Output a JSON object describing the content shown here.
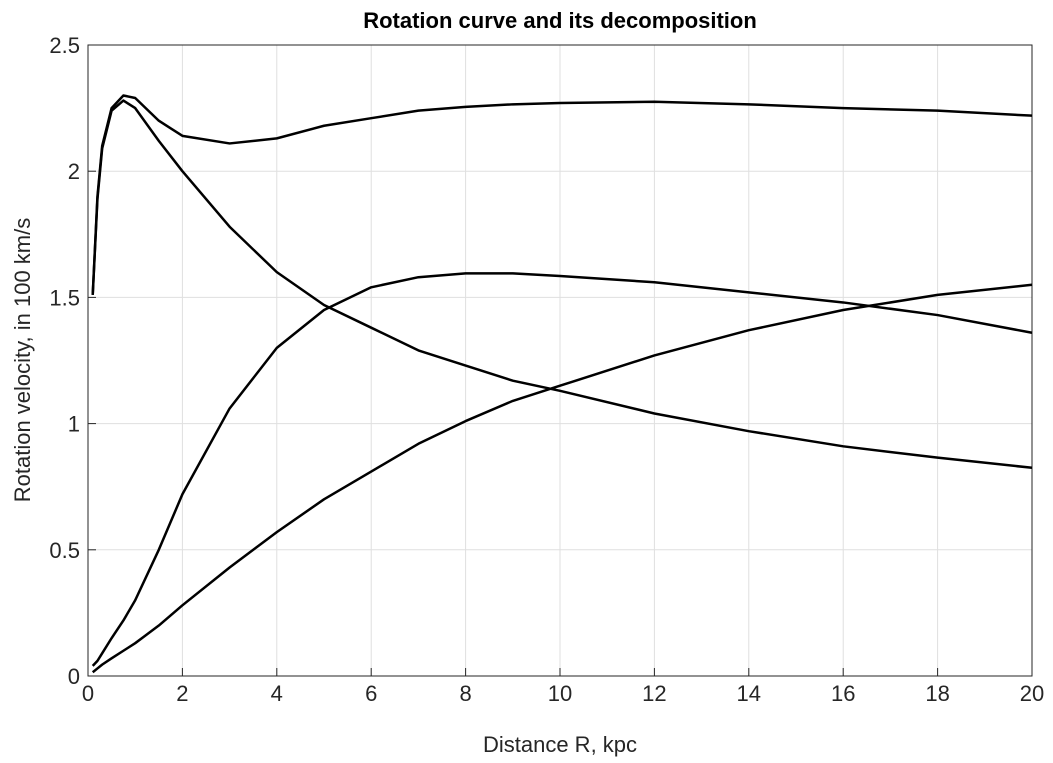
{
  "chart_data": {
    "type": "line",
    "title": "Rotation curve and its decomposition",
    "xlabel": "Distance R, kpc",
    "ylabel": "Rotation velocity, in 100 km/s",
    "x": [
      0.1,
      0.2,
      0.3,
      0.5,
      0.75,
      1,
      1.5,
      2,
      3,
      4,
      5,
      6,
      7,
      8,
      9,
      10,
      12,
      14,
      16,
      18,
      20
    ],
    "series": [
      {
        "color": "#000000",
        "values": [
          1.51,
          1.9,
          2.1,
          2.25,
          2.3,
          2.29,
          2.2,
          2.14,
          2.11,
          2.13,
          2.18,
          2.21,
          2.24,
          2.255,
          2.265,
          2.27,
          2.275,
          2.265,
          2.25,
          2.24,
          2.22
        ]
      },
      {
        "color": "#000000",
        "values": [
          1.51,
          1.89,
          2.09,
          2.24,
          2.28,
          2.25,
          2.12,
          2.0,
          1.78,
          1.6,
          1.47,
          1.38,
          1.29,
          1.23,
          1.17,
          1.13,
          1.04,
          0.97,
          0.91,
          0.865,
          0.825
        ]
      },
      {
        "color": "#000000",
        "values": [
          0.04,
          0.06,
          0.09,
          0.15,
          0.22,
          0.3,
          0.5,
          0.72,
          1.06,
          1.3,
          1.45,
          1.54,
          1.58,
          1.595,
          1.595,
          1.585,
          1.56,
          1.52,
          1.48,
          1.43,
          1.36
        ]
      },
      {
        "color": "#000000",
        "values": [
          0.015,
          0.03,
          0.045,
          0.07,
          0.1,
          0.13,
          0.2,
          0.28,
          0.43,
          0.57,
          0.7,
          0.81,
          0.92,
          1.01,
          1.09,
          1.15,
          1.27,
          1.37,
          1.45,
          1.51,
          1.55
        ]
      }
    ],
    "xlim": [
      0,
      20
    ],
    "xticks": [
      0,
      2,
      4,
      6,
      8,
      10,
      12,
      14,
      16,
      18,
      20
    ],
    "ylim": [
      0,
      2.5
    ],
    "yticks": [
      0,
      0.5,
      1,
      1.5,
      2,
      2.5
    ],
    "grid": true
  }
}
